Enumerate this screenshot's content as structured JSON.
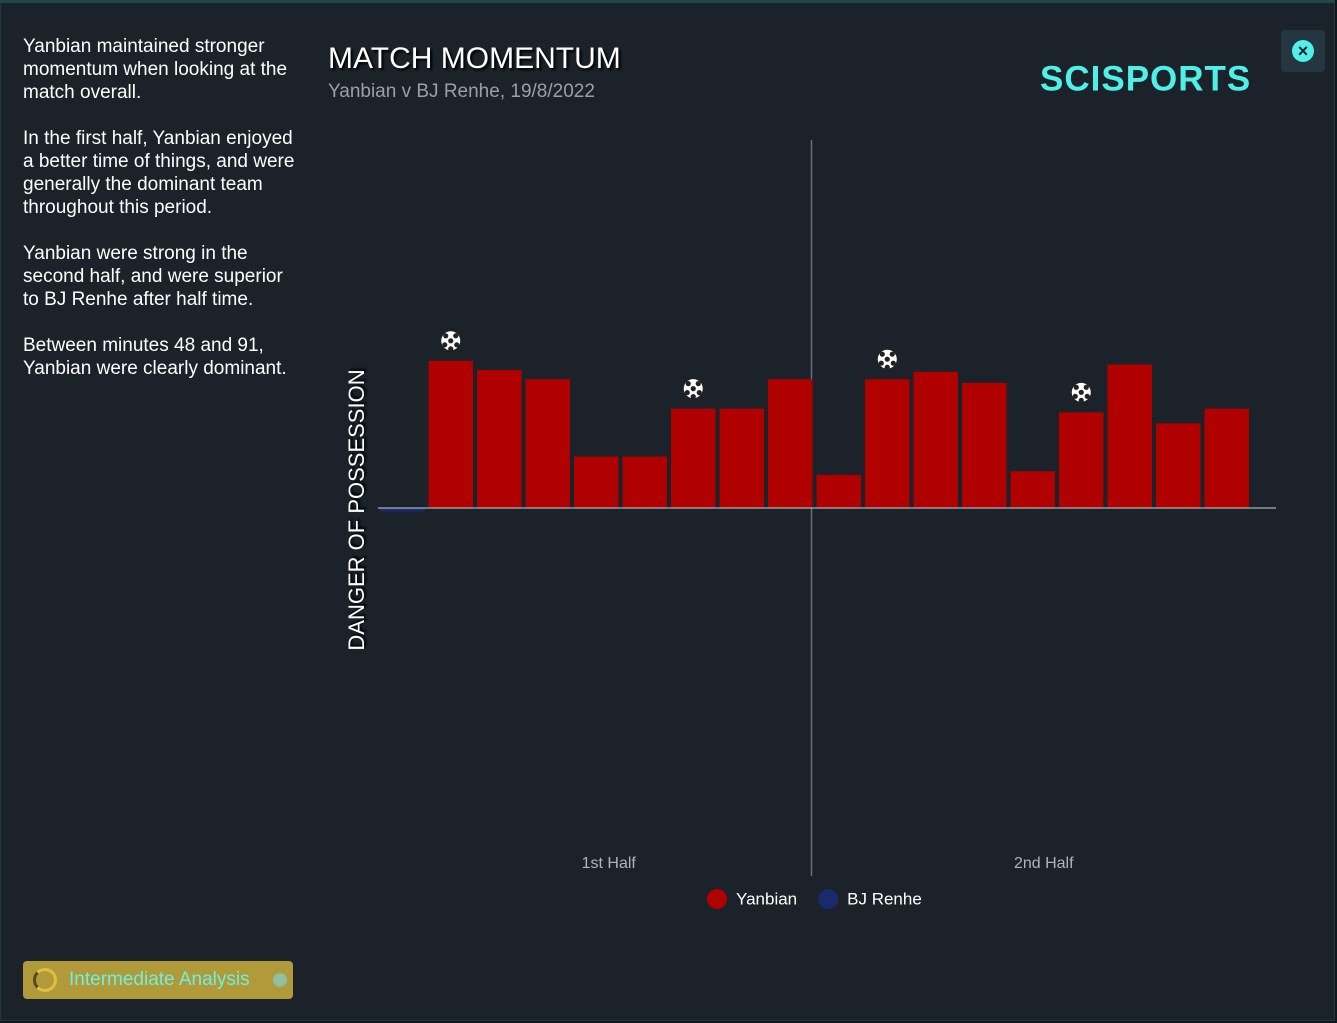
{
  "sidebar": {
    "paragraphs": [
      "Yanbian maintained stronger momentum when looking at the match overall.",
      "In the first half, Yanbian enjoyed a better time of things, and were generally the dominant team throughout this period.",
      "Yanbian were strong in the second half, and were superior to BJ Renhe after half time.",
      "Between minutes 48 and 91, Yanbian were clearly dominant."
    ],
    "badge": "Intermediate Analysis"
  },
  "logo": "SCISPORTS",
  "chart_data": {
    "type": "bar",
    "title": "MATCH MOMENTUM",
    "subtitle": "Yanbian v BJ Renhe, 19/8/2022",
    "ylabel": "DANGER OF POSSESSION",
    "halves": [
      "1st Half",
      "2nd Half"
    ],
    "ylim": [
      -100,
      100
    ],
    "series": [
      {
        "name": "Yanbian",
        "color": "#b00000",
        "values": [
          0,
          40,
          37.5,
          35,
          14,
          14,
          27,
          27,
          35,
          9,
          35,
          37,
          34,
          10,
          26,
          39,
          23,
          27
        ]
      },
      {
        "name": "BJ Renhe",
        "color": "#1a2a6b",
        "values": [
          -1,
          0,
          0,
          0,
          0,
          0,
          0,
          0,
          0,
          0,
          0,
          0,
          0,
          0,
          0,
          0,
          0,
          0
        ]
      }
    ],
    "goals": [
      1,
      6,
      10,
      14
    ]
  }
}
